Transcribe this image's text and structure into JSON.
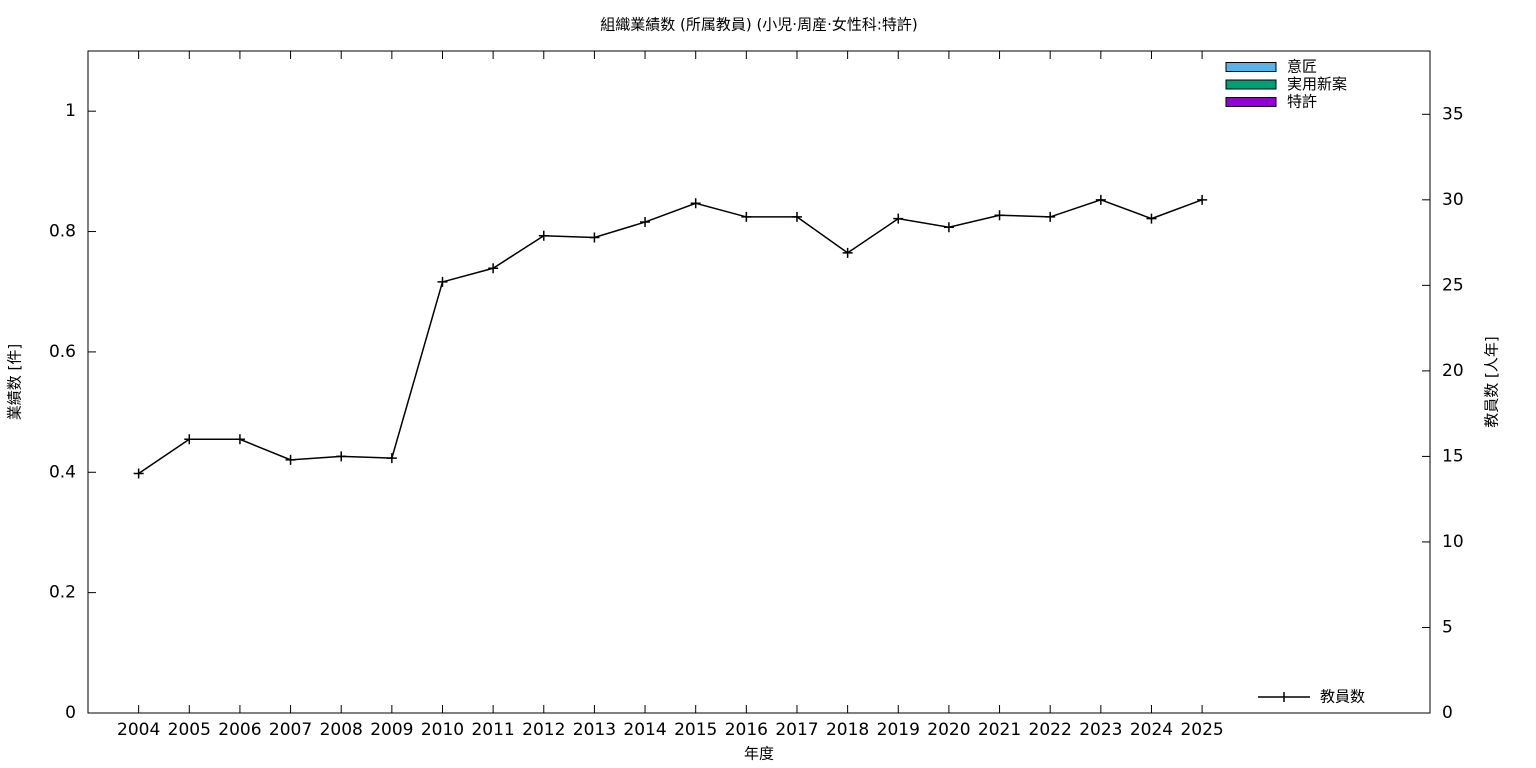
{
  "chart_data": {
    "type": "bar",
    "title": "組織業績数 (所属教員) (小児·周産·女性科:特許)",
    "xlabel": "年度",
    "ylabel": "業績数 [件]",
    "y2label": "教員数 [人年]",
    "x": [
      2004,
      2005,
      2006,
      2007,
      2008,
      2009,
      2010,
      2011,
      2012,
      2013,
      2014,
      2015,
      2016,
      2017,
      2018,
      2019,
      2020,
      2021,
      2022,
      2023,
      2024,
      2025
    ],
    "series": [
      {
        "name": "意匠",
        "color": "#56b4e9",
        "values": [
          0,
          0,
          0,
          0,
          0,
          0,
          0,
          0,
          0,
          0,
          0,
          0,
          0,
          0,
          0,
          0,
          0,
          0,
          0,
          0,
          0,
          0
        ]
      },
      {
        "name": "実用新案",
        "color": "#009e73",
        "values": [
          0,
          0,
          0,
          0,
          0,
          0,
          0,
          0,
          0,
          0,
          0,
          0,
          0,
          0,
          0,
          0,
          0,
          0,
          0,
          0,
          0,
          0
        ]
      },
      {
        "name": "特許",
        "color": "#9400d3",
        "values": [
          0,
          0,
          0,
          0,
          0,
          0,
          0,
          0,
          0,
          0,
          0,
          0,
          0,
          0,
          0,
          0,
          0,
          0,
          0,
          0,
          0,
          0
        ]
      },
      {
        "name": "教員数",
        "color": "#000000",
        "type": "line",
        "axis": "y2",
        "values": [
          14,
          16,
          16,
          14.8,
          15,
          14.9,
          25.2,
          26,
          27.9,
          27.8,
          28.7,
          29.8,
          29,
          29,
          26.9,
          28.9,
          28.4,
          29.1,
          29,
          30,
          28.9,
          30
        ]
      }
    ],
    "xlim": [
      2003,
      2029.5
    ],
    "xticks": [
      2004,
      2005,
      2006,
      2007,
      2008,
      2009,
      2010,
      2011,
      2012,
      2013,
      2014,
      2015,
      2016,
      2017,
      2018,
      2019,
      2020,
      2021,
      2022,
      2023,
      2024,
      2025
    ],
    "ylim": [
      0,
      1.1
    ],
    "yticks": [
      0,
      0.2,
      0.4,
      0.6,
      0.8,
      1
    ],
    "y2lim": [
      0,
      38.7
    ],
    "y2ticks": [
      0,
      5,
      10,
      15,
      20,
      25,
      30,
      35
    ],
    "grid": false
  }
}
